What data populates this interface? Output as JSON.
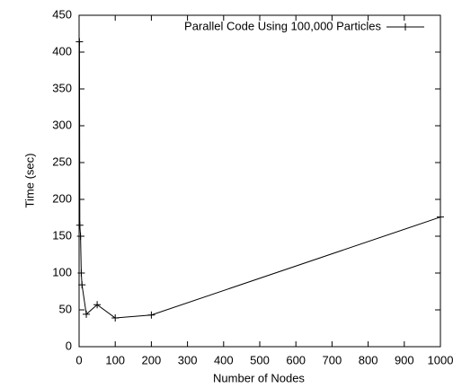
{
  "chart_data": {
    "type": "line",
    "xlabel": "Number of Nodes",
    "ylabel": "Time (sec)",
    "series": [
      {
        "name": "Parallel Code Using 100,000 Particles",
        "color": "#000000",
        "x": [
          1,
          2,
          4,
          6,
          8,
          20,
          50,
          100,
          200,
          1000
        ],
        "values": [
          414,
          165,
          150,
          100,
          84,
          44,
          57,
          39,
          43,
          176
        ]
      }
    ],
    "xlim": [
      0,
      1000
    ],
    "xticks": [
      0,
      100,
      200,
      300,
      400,
      500,
      600,
      700,
      800,
      900,
      1000
    ],
    "ylim": [
      0,
      450
    ],
    "yticks": [
      0,
      50,
      100,
      150,
      200,
      250,
      300,
      350,
      400,
      450
    ],
    "legend": "top-right",
    "grid": false
  }
}
